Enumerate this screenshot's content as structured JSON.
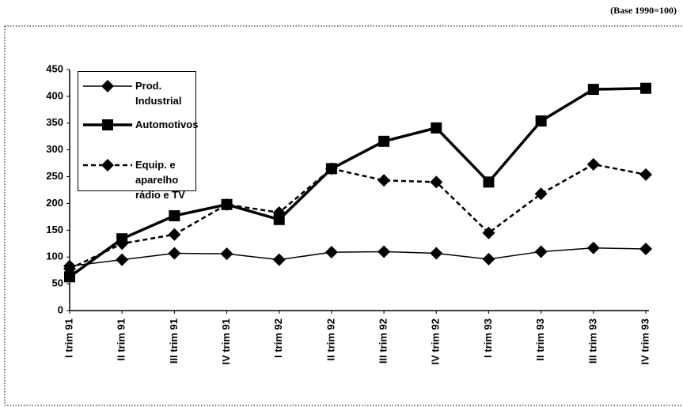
{
  "chart_data": {
    "type": "line",
    "note": "(Base 1990=100)",
    "categories": [
      "I trim 91",
      "II trim 91",
      "III trim 91",
      "IV trim 91",
      "I trim 92",
      "II trim 92",
      "III trim 92",
      "IV trim 92",
      "I trim 93",
      "II trim 93",
      "III trim 93",
      "IV trim 93"
    ],
    "series": [
      {
        "name": "Prod. Industrial",
        "color": "#000000",
        "marker": "diamond",
        "dash": "solid",
        "width": 1.5,
        "values": [
          83,
          95,
          107,
          106,
          95,
          109,
          110,
          107,
          96,
          110,
          117,
          115
        ]
      },
      {
        "name": "Automotivos",
        "color": "#000000",
        "marker": "square",
        "dash": "solid",
        "width": 3.5,
        "values": [
          63,
          134,
          177,
          198,
          170,
          265,
          316,
          341,
          240,
          354,
          413,
          415
        ]
      },
      {
        "name": "Equip. e aparelho rádio e TV",
        "color": "#000000",
        "marker": "diamond",
        "dash": "dashed",
        "width": 2.5,
        "values": [
          78,
          125,
          142,
          198,
          183,
          265,
          243,
          240,
          145,
          218,
          273,
          254
        ]
      }
    ],
    "ylim": [
      0,
      450
    ],
    "yticks": [
      0,
      50,
      100,
      150,
      200,
      250,
      300,
      350,
      400,
      450
    ],
    "grid": false,
    "legend": "top-left"
  }
}
